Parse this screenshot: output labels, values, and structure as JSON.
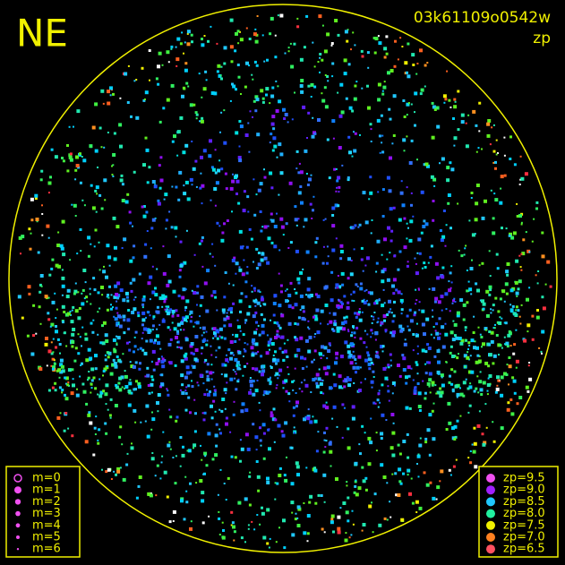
{
  "header": {
    "direction": "NE",
    "image_id": "03k61109o0542w",
    "mode": "zp"
  },
  "legend_magnitude": [
    {
      "label": "m=0"
    },
    {
      "label": "m=1"
    },
    {
      "label": "m=2"
    },
    {
      "label": "m=3"
    },
    {
      "label": "m=4"
    },
    {
      "label": "m=5"
    },
    {
      "label": "m=6"
    }
  ],
  "legend_zp": [
    {
      "label": "zp=9.5",
      "color": "#f050f0"
    },
    {
      "label": "zp=9.0",
      "color": "#a020ff"
    },
    {
      "label": "zp=8.5",
      "color": "#20c8ff"
    },
    {
      "label": "zp=8.0",
      "color": "#20f0a0"
    },
    {
      "label": "zp=7.5",
      "color": "#f0f000"
    },
    {
      "label": "zp=7.0",
      "color": "#ff8020"
    },
    {
      "label": "zp=6.5",
      "color": "#ff5060"
    }
  ]
}
